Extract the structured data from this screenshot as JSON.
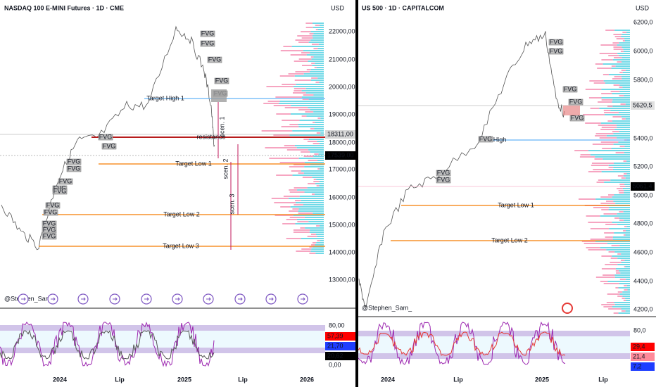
{
  "left": {
    "title": "NASDAQ 100 E-MINI Futures · 1D · CME",
    "currency": "USD",
    "price_ticks": [
      "22000,00",
      "21000,00",
      "20000,00",
      "19000,00",
      "18000,00",
      "17000,00",
      "16000,00",
      "15000,00",
      "14000,00",
      "13000,00"
    ],
    "price_tags": [
      "18311,00",
      "17539,00"
    ],
    "annotations": [
      "Target High 1",
      "resistance",
      "Target Low 1",
      "Target Low 2",
      "Target Low 3"
    ],
    "scenarios": [
      "scen. 1",
      "scen. 2",
      "scen. 3"
    ],
    "fvg_label": "FVG",
    "osc_ticks": [
      "80,00",
      "0,00"
    ],
    "osc_tags": [
      "57,39",
      "21,70",
      "20,62"
    ],
    "time_labels": [
      "2024",
      "Lip",
      "2025",
      "Lip",
      "2026"
    ],
    "watermark": "@Stephen_Sam_"
  },
  "right": {
    "title": "US 500 · 1D · CAPITALCOM",
    "currency": "USD",
    "price_ticks": [
      "6200,0",
      "6000,0",
      "5800,0",
      "5400,0",
      "5200,0",
      "5000,0",
      "4800,0",
      "4600,0",
      "4400,0",
      "4200,0"
    ],
    "price_tags": [
      "5620,5",
      "5061,4"
    ],
    "annotations": [
      "High",
      "Target Low 1",
      "Target Low 2"
    ],
    "fvg_label": "FVG",
    "osc_ticks": [
      "80,0"
    ],
    "osc_tags": [
      "29,4",
      "21,4",
      "7,2"
    ],
    "time_labels": [
      "2024",
      "Lip",
      "2025",
      "Lip"
    ],
    "watermark": "@Stephen_Sam_"
  }
}
